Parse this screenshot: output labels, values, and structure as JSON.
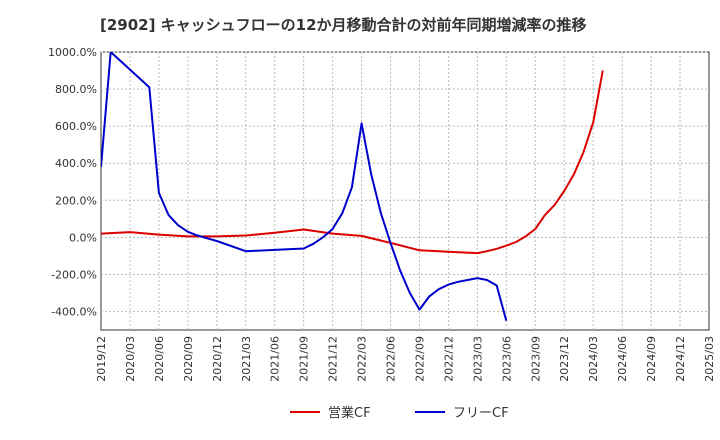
{
  "chart_data": {
    "type": "line",
    "title": "[2902]  キャッシュフローの12か月移動合計の対前年同期増減率の推移",
    "xlabel": "",
    "ylabel": "",
    "ylim": [
      -500,
      1000
    ],
    "y_ticks": [
      -400,
      -200,
      0,
      200,
      400,
      600,
      800,
      1000
    ],
    "y_tick_labels": [
      "-400.0%",
      "-200.0%",
      "0.0%",
      "200.0%",
      "400.0%",
      "600.0%",
      "800.0%",
      "1000.0%"
    ],
    "x_start": "2019-12",
    "x_end": "2025-03",
    "x_tick_labels": [
      "2019/12",
      "2020/03",
      "2020/06",
      "2020/09",
      "2020/12",
      "2021/03",
      "2021/06",
      "2021/09",
      "2021/12",
      "2022/03",
      "2022/06",
      "2022/09",
      "2022/12",
      "2023/03",
      "2023/06",
      "2023/09",
      "2023/12",
      "2024/03",
      "2024/06",
      "2024/09",
      "2024/12",
      "2025/03"
    ],
    "series": [
      {
        "name": "営業CF",
        "color": "#dd0000",
        "points": [
          [
            "2019-12",
            20
          ],
          [
            "2020-03",
            28
          ],
          [
            "2020-06",
            15
          ],
          [
            "2020-09",
            5
          ],
          [
            "2020-12",
            5
          ],
          [
            "2021-03",
            10
          ],
          [
            "2021-06",
            25
          ],
          [
            "2021-09",
            42
          ],
          [
            "2021-12",
            20
          ],
          [
            "2022-03",
            8
          ],
          [
            "2022-06",
            -30
          ],
          [
            "2022-09",
            -70
          ],
          [
            "2022-12",
            -78
          ],
          [
            "2023-03",
            -85
          ],
          [
            "2023-04",
            -75
          ],
          [
            "2023-05",
            -62
          ],
          [
            "2023-06",
            -45
          ],
          [
            "2023-07",
            -25
          ],
          [
            "2023-08",
            5
          ],
          [
            "2023-09",
            45
          ],
          [
            "2023-10",
            120
          ],
          [
            "2023-11",
            175
          ],
          [
            "2023-12",
            250
          ],
          [
            "2024-01",
            340
          ],
          [
            "2024-02",
            460
          ],
          [
            "2024-03",
            620
          ],
          [
            "2024-04",
            900
          ]
        ]
      },
      {
        "name": "フリーCF",
        "color": "#0000cc",
        "points": [
          [
            "2019-12",
            380
          ],
          [
            "2020-01",
            1000
          ],
          [
            "2020-05",
            810
          ],
          [
            "2020-06",
            240
          ],
          [
            "2020-07",
            120
          ],
          [
            "2020-08",
            65
          ],
          [
            "2020-09",
            30
          ],
          [
            "2020-10",
            10
          ],
          [
            "2020-11",
            -5
          ],
          [
            "2020-12",
            -20
          ],
          [
            "2021-03",
            -75
          ],
          [
            "2021-06",
            -68
          ],
          [
            "2021-09",
            -60
          ],
          [
            "2021-10",
            -35
          ],
          [
            "2021-11",
            0
          ],
          [
            "2021-12",
            45
          ],
          [
            "2022-01",
            130
          ],
          [
            "2022-02",
            270
          ],
          [
            "2022-03",
            615
          ],
          [
            "2022-04",
            340
          ],
          [
            "2022-05",
            130
          ],
          [
            "2022-06",
            -30
          ],
          [
            "2022-07",
            -180
          ],
          [
            "2022-08",
            -300
          ],
          [
            "2022-09",
            -390
          ],
          [
            "2022-10",
            -320
          ],
          [
            "2022-11",
            -280
          ],
          [
            "2022-12",
            -255
          ],
          [
            "2023-01",
            -240
          ],
          [
            "2023-02",
            -230
          ],
          [
            "2023-03",
            -220
          ],
          [
            "2023-04",
            -230
          ],
          [
            "2023-05",
            -260
          ],
          [
            "2023-06",
            -450
          ]
        ]
      }
    ],
    "legend_position": "bottom-center"
  }
}
